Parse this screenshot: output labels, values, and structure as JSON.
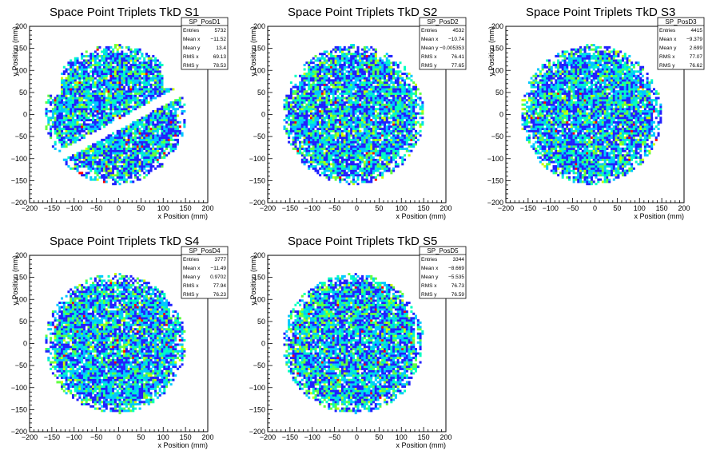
{
  "chart_data": [
    {
      "type": "heatmap",
      "title": "Space Point Triplets TkD S1",
      "xlabel": "x Position (mm)",
      "ylabel": "y Position (mm)",
      "xlim": [
        -200,
        200
      ],
      "ylim": [
        -200,
        200
      ],
      "xticks": [
        "−200",
        "−150",
        "−100",
        "−50",
        "0",
        "50",
        "100",
        "150",
        "200"
      ],
      "yticks": [
        "−200",
        "−150",
        "−100",
        "−50",
        "0",
        "50",
        "100",
        "150",
        "200"
      ],
      "shape": "gap",
      "stats_box": {
        "name": "SP_PosD1",
        "rows": [
          {
            "label": "Entries",
            "value": "5732"
          },
          {
            "label": "Mean x",
            "value": "−11.52"
          },
          {
            "label": "Mean y",
            "value": "13.4"
          },
          {
            "label": "RMS x",
            "value": "69.13"
          },
          {
            "label": "RMS y",
            "value": "78.53"
          }
        ]
      }
    },
    {
      "type": "heatmap",
      "title": "Space Point Triplets TkD S2",
      "xlabel": "x Position (mm)",
      "ylabel": "y Position (mm)",
      "xlim": [
        -200,
        200
      ],
      "ylim": [
        -200,
        200
      ],
      "xticks": [
        "−200",
        "−150",
        "−100",
        "−50",
        "0",
        "50",
        "100",
        "150",
        "200"
      ],
      "yticks": [
        "−200",
        "−150",
        "−100",
        "−50",
        "0",
        "50",
        "100",
        "150",
        "200"
      ],
      "shape": "disk",
      "stats_box": {
        "name": "SP_PosD2",
        "rows": [
          {
            "label": "Entries",
            "value": "4532"
          },
          {
            "label": "Mean x",
            "value": "−10.74"
          },
          {
            "label": "Mean y",
            "value": "−0.005353"
          },
          {
            "label": "RMS x",
            "value": "76.41"
          },
          {
            "label": "RMS y",
            "value": "77.65"
          }
        ]
      }
    },
    {
      "type": "heatmap",
      "title": "Space Point Triplets TkD S3",
      "xlabel": "x Position (mm)",
      "ylabel": "y Position (mm)",
      "xlim": [
        -200,
        200
      ],
      "ylim": [
        -200,
        200
      ],
      "xticks": [
        "−200",
        "−150",
        "−100",
        "−50",
        "0",
        "50",
        "100",
        "150",
        "200"
      ],
      "yticks": [
        "−200",
        "−150",
        "−100",
        "−50",
        "0",
        "50",
        "100",
        "150",
        "200"
      ],
      "shape": "disk",
      "stats_box": {
        "name": "SP_PosD3",
        "rows": [
          {
            "label": "Entries",
            "value": "4415"
          },
          {
            "label": "Mean x",
            "value": "−9.379"
          },
          {
            "label": "Mean y",
            "value": "2.699"
          },
          {
            "label": "RMS x",
            "value": "77.07"
          },
          {
            "label": "RMS y",
            "value": "76.62"
          }
        ]
      }
    },
    {
      "type": "heatmap",
      "title": "Space Point Triplets TkD S4",
      "xlabel": "x Position (mm)",
      "ylabel": "y Position (mm)",
      "xlim": [
        -200,
        200
      ],
      "ylim": [
        -200,
        200
      ],
      "xticks": [
        "−200",
        "−150",
        "−100",
        "−50",
        "0",
        "50",
        "100",
        "150",
        "200"
      ],
      "yticks": [
        "−200",
        "−150",
        "−100",
        "−50",
        "0",
        "50",
        "100",
        "150",
        "200"
      ],
      "shape": "disk",
      "stats_box": {
        "name": "SP_PosD4",
        "rows": [
          {
            "label": "Entries",
            "value": "3777"
          },
          {
            "label": "Mean x",
            "value": "−11.49"
          },
          {
            "label": "Mean y",
            "value": "0.9702"
          },
          {
            "label": "RMS x",
            "value": "77.94"
          },
          {
            "label": "RMS y",
            "value": "76.23"
          }
        ]
      }
    },
    {
      "type": "heatmap",
      "title": "Space Point Triplets TkD S5",
      "xlabel": "x Position (mm)",
      "ylabel": "y Position (mm)",
      "xlim": [
        -200,
        200
      ],
      "ylim": [
        -200,
        200
      ],
      "xticks": [
        "−200",
        "−150",
        "−100",
        "−50",
        "0",
        "50",
        "100",
        "150",
        "200"
      ],
      "yticks": [
        "−200",
        "−150",
        "−100",
        "−50",
        "0",
        "50",
        "100",
        "150",
        "200"
      ],
      "shape": "disk",
      "stats_box": {
        "name": "SP_PosD5",
        "rows": [
          {
            "label": "Entries",
            "value": "3344"
          },
          {
            "label": "Mean x",
            "value": "−8.669"
          },
          {
            "label": "Mean y",
            "value": "−5.535"
          },
          {
            "label": "RMS x",
            "value": "76.73"
          },
          {
            "label": "RMS y",
            "value": "76.59"
          }
        ]
      }
    }
  ],
  "palette": [
    "#2020ff",
    "#00c8ff",
    "#00ffc0",
    "#60ff40",
    "#c8ff00",
    "#ff0000",
    "#ffffff"
  ]
}
